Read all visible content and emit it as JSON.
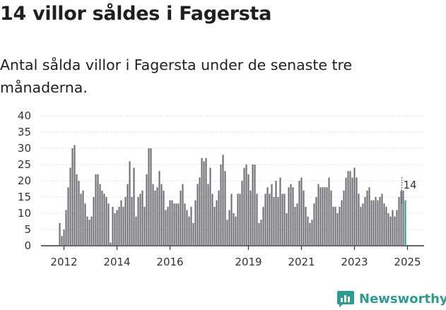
{
  "header": {
    "title": "14 villor såldes i Fagersta",
    "subtitle": "Antal sålda villor i Fagersta under de senaste tre månaderna."
  },
  "brand": {
    "name": "Newsworthy",
    "color": "#2a9d8f"
  },
  "chart_data": {
    "type": "bar",
    "title": "14 villor såldes i Fagersta",
    "subtitle": "Antal sålda villor i Fagersta under de senaste tre månaderna.",
    "xlabel": "",
    "ylabel": "",
    "ylim": [
      0,
      40
    ],
    "yticks": [
      0,
      5,
      10,
      15,
      20,
      25,
      30,
      35,
      40
    ],
    "xtick_labels": [
      "2012",
      "2014",
      "2016",
      "2019",
      "2021",
      "2023",
      "2025"
    ],
    "xtick_label_index": [
      2,
      27,
      52,
      89,
      114,
      139,
      164
    ],
    "grid": true,
    "bar_color": "#6e6e73",
    "highlight_color": "#2a9d8f",
    "highlight_label": "14",
    "values": [
      7,
      3,
      5,
      11,
      18,
      24,
      30,
      31,
      22,
      20,
      16,
      17,
      13,
      9,
      8,
      9,
      15,
      22,
      22,
      19,
      17,
      16,
      15,
      13,
      1,
      12,
      10,
      11,
      12,
      14,
      12,
      15,
      19,
      26,
      15,
      24,
      9,
      15,
      16,
      17,
      12,
      22,
      30,
      30,
      19,
      17,
      18,
      23,
      19,
      17,
      11,
      12,
      14,
      14,
      13,
      13,
      13,
      17,
      19,
      13,
      11,
      9,
      12,
      7,
      14,
      19,
      21,
      27,
      26,
      27,
      19,
      24,
      16,
      12,
      14,
      17,
      25,
      28,
      23,
      8,
      11,
      16,
      10,
      9,
      16,
      16,
      20,
      24,
      25,
      22,
      17,
      25,
      25,
      16,
      7,
      8,
      12,
      16,
      18,
      16,
      19,
      15,
      20,
      15,
      21,
      16,
      16,
      10,
      18,
      19,
      18,
      12,
      13,
      20,
      21,
      17,
      12,
      9,
      7,
      8,
      13,
      15,
      19,
      18,
      18,
      18,
      18,
      21,
      17,
      12,
      12,
      10,
      12,
      14,
      17,
      21,
      23,
      23,
      21,
      24,
      21,
      16,
      12,
      13,
      15,
      17,
      18,
      14,
      14,
      15,
      14,
      15,
      16,
      13,
      12,
      10,
      9,
      11,
      9,
      11,
      15,
      17,
      17,
      14
    ],
    "last_value_label": "14"
  }
}
